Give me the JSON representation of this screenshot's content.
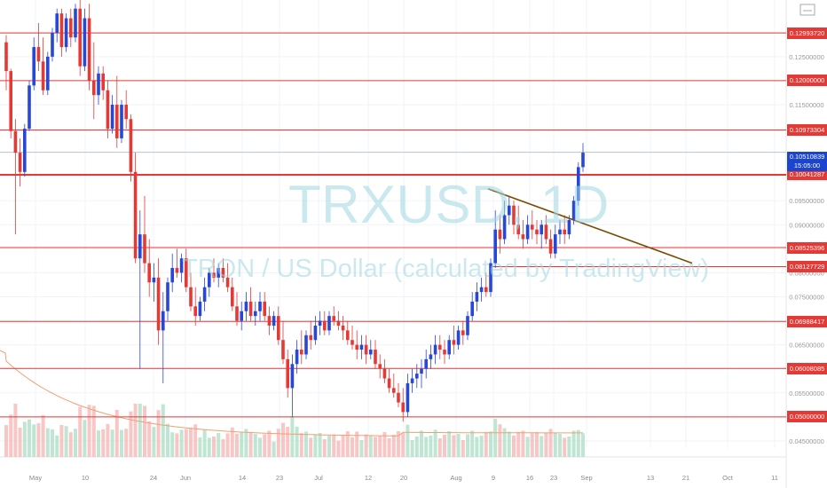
{
  "watermark": {
    "symbol": "TRXUSD, 1D",
    "description": "TRON / US Dollar (calculated by TradingView)"
  },
  "chart_data": {
    "type": "candlestick",
    "x_ticks": [
      "May",
      "10",
      "24",
      "Jun",
      "14",
      "23",
      "Jul",
      "12",
      "20",
      "Aug",
      "9",
      "16",
      "23",
      "Sep",
      "13",
      "21",
      "Oct",
      "11"
    ],
    "y_ticks": [
      0.13,
      0.125,
      0.115,
      0.095,
      0.09,
      0.08,
      0.075,
      0.065,
      0.055,
      0.045
    ],
    "y_tick_labels": [
      "0.13000000",
      "0.12500000",
      "0.11500000",
      "0.09500000",
      "0.09000000",
      "0.08000000",
      "0.07500000",
      "0.06500000",
      "0.05500000",
      "0.04500000"
    ],
    "ylim": [
      0.0435,
      0.1368
    ],
    "levels": [
      {
        "value": 0.1299372,
        "label": "0.12993720"
      },
      {
        "value": 0.12,
        "label": "0.12000000"
      },
      {
        "value": 0.10973304,
        "label": "0.10973304"
      },
      {
        "value": 0.10041287,
        "label": "0.10041287"
      },
      {
        "value": 0.08525396,
        "label": "0.08525396"
      },
      {
        "value": 0.08127729,
        "label": "0.08127729"
      },
      {
        "value": 0.06988417,
        "label": "0.06988417"
      },
      {
        "value": 0.06008085,
        "label": "0.06008085"
      },
      {
        "value": 0.05,
        "label": "0.05000000"
      }
    ],
    "current_price": {
      "value": 0.10510839,
      "label": "0.10510839",
      "countdown": "15:05:00"
    },
    "trendline": {
      "start": {
        "day": 120,
        "price": 0.0975
      },
      "end": {
        "day": 169,
        "price": 0.082
      },
      "color": "#7a4b00"
    },
    "colors": {
      "up": "#2747d6",
      "down": "#e53935",
      "level": "#e53935",
      "ma": "#f0a070"
    },
    "candles": [
      [
        0.128,
        0.1295,
        0.118,
        0.122
      ],
      [
        0.122,
        0.1225,
        0.108,
        0.1095
      ],
      [
        0.1095,
        0.112,
        0.088,
        0.105
      ],
      [
        0.105,
        0.108,
        0.098,
        0.101
      ],
      [
        0.101,
        0.111,
        0.1,
        0.11
      ],
      [
        0.11,
        0.12,
        0.1095,
        0.119
      ],
      [
        0.119,
        0.129,
        0.118,
        0.127
      ],
      [
        0.127,
        0.132,
        0.122,
        0.124
      ],
      [
        0.124,
        0.129,
        0.117,
        0.118
      ],
      [
        0.118,
        0.126,
        0.117,
        0.125
      ],
      [
        0.125,
        0.131,
        0.124,
        0.13
      ],
      [
        0.13,
        0.135,
        0.128,
        0.134
      ],
      [
        0.134,
        0.135,
        0.125,
        0.127
      ],
      [
        0.127,
        0.134,
        0.126,
        0.133
      ],
      [
        0.133,
        0.135,
        0.127,
        0.129
      ],
      [
        0.129,
        0.136,
        0.128,
        0.135
      ],
      [
        0.135,
        0.137,
        0.121,
        0.123
      ],
      [
        0.123,
        0.135,
        0.122,
        0.133
      ],
      [
        0.133,
        0.136,
        0.118,
        0.12
      ],
      [
        0.12,
        0.128,
        0.112,
        0.117
      ],
      [
        0.117,
        0.123,
        0.115,
        0.1215
      ],
      [
        0.1215,
        0.123,
        0.116,
        0.118
      ],
      [
        0.118,
        0.12,
        0.108,
        0.11
      ],
      [
        0.11,
        0.117,
        0.109,
        0.115
      ],
      [
        0.115,
        0.121,
        0.106,
        0.108
      ],
      [
        0.108,
        0.116,
        0.107,
        0.115
      ],
      [
        0.115,
        0.118,
        0.11,
        0.112
      ],
      [
        0.112,
        0.113,
        0.099,
        0.101
      ],
      [
        0.101,
        0.105,
        0.082,
        0.083
      ],
      [
        0.083,
        0.093,
        0.06,
        0.088
      ],
      [
        0.088,
        0.096,
        0.08,
        0.082
      ],
      [
        0.082,
        0.087,
        0.075,
        0.078
      ],
      [
        0.078,
        0.082,
        0.074,
        0.079
      ],
      [
        0.079,
        0.083,
        0.065,
        0.068
      ],
      [
        0.068,
        0.076,
        0.057,
        0.072
      ],
      [
        0.072,
        0.079,
        0.07,
        0.078
      ],
      [
        0.078,
        0.084,
        0.076,
        0.081
      ],
      [
        0.081,
        0.085,
        0.079,
        0.08
      ],
      [
        0.08,
        0.084,
        0.078,
        0.083
      ],
      [
        0.083,
        0.085,
        0.076,
        0.077
      ],
      [
        0.077,
        0.08,
        0.072,
        0.073
      ],
      [
        0.073,
        0.077,
        0.069,
        0.071
      ],
      [
        0.071,
        0.075,
        0.07,
        0.074
      ],
      [
        0.074,
        0.079,
        0.072,
        0.077
      ],
      [
        0.077,
        0.081,
        0.075,
        0.08
      ],
      [
        0.08,
        0.083,
        0.078,
        0.079
      ],
      [
        0.079,
        0.082,
        0.077,
        0.081
      ],
      [
        0.081,
        0.083,
        0.078,
        0.079
      ],
      [
        0.079,
        0.082,
        0.076,
        0.077
      ],
      [
        0.077,
        0.079,
        0.072,
        0.073
      ],
      [
        0.073,
        0.076,
        0.069,
        0.07
      ],
      [
        0.07,
        0.074,
        0.068,
        0.072
      ],
      [
        0.072,
        0.076,
        0.07,
        0.074
      ],
      [
        0.074,
        0.077,
        0.07,
        0.071
      ],
      [
        0.071,
        0.074,
        0.069,
        0.072
      ],
      [
        0.072,
        0.076,
        0.07,
        0.074
      ],
      [
        0.074,
        0.076,
        0.07,
        0.071
      ],
      [
        0.071,
        0.073,
        0.067,
        0.069
      ],
      [
        0.069,
        0.072,
        0.068,
        0.071
      ],
      [
        0.071,
        0.073,
        0.065,
        0.066
      ],
      [
        0.066,
        0.07,
        0.061,
        0.062
      ],
      [
        0.062,
        0.064,
        0.054,
        0.056
      ],
      [
        0.056,
        0.063,
        0.05,
        0.061
      ],
      [
        0.061,
        0.066,
        0.059,
        0.064
      ],
      [
        0.064,
        0.068,
        0.061,
        0.063
      ],
      [
        0.063,
        0.068,
        0.062,
        0.067
      ],
      [
        0.067,
        0.07,
        0.064,
        0.066
      ],
      [
        0.066,
        0.071,
        0.065,
        0.069
      ],
      [
        0.069,
        0.072,
        0.067,
        0.07
      ],
      [
        0.07,
        0.072,
        0.067,
        0.068
      ],
      [
        0.068,
        0.072,
        0.067,
        0.071
      ],
      [
        0.071,
        0.073,
        0.069,
        0.07
      ],
      [
        0.07,
        0.072,
        0.068,
        0.069
      ],
      [
        0.069,
        0.071,
        0.066,
        0.068
      ],
      [
        0.068,
        0.07,
        0.065,
        0.066
      ],
      [
        0.066,
        0.069,
        0.064,
        0.065
      ],
      [
        0.065,
        0.068,
        0.062,
        0.064
      ],
      [
        0.064,
        0.067,
        0.062,
        0.065
      ],
      [
        0.065,
        0.067,
        0.061,
        0.063
      ],
      [
        0.063,
        0.066,
        0.062,
        0.064
      ],
      [
        0.064,
        0.066,
        0.06,
        0.061
      ],
      [
        0.061,
        0.063,
        0.058,
        0.06
      ],
      [
        0.06,
        0.062,
        0.057,
        0.058
      ],
      [
        0.058,
        0.06,
        0.055,
        0.056
      ],
      [
        0.056,
        0.059,
        0.054,
        0.055
      ],
      [
        0.055,
        0.057,
        0.052,
        0.053
      ],
      [
        0.053,
        0.056,
        0.049,
        0.051
      ],
      [
        0.051,
        0.059,
        0.05,
        0.057
      ],
      [
        0.057,
        0.06,
        0.055,
        0.058
      ],
      [
        0.058,
        0.061,
        0.056,
        0.059
      ],
      [
        0.059,
        0.062,
        0.056,
        0.06
      ],
      [
        0.06,
        0.064,
        0.058,
        0.062
      ],
      [
        0.062,
        0.065,
        0.06,
        0.063
      ],
      [
        0.063,
        0.067,
        0.061,
        0.065
      ],
      [
        0.065,
        0.067,
        0.062,
        0.064
      ],
      [
        0.064,
        0.066,
        0.061,
        0.063
      ],
      [
        0.063,
        0.067,
        0.062,
        0.066
      ],
      [
        0.066,
        0.069,
        0.063,
        0.065
      ],
      [
        0.065,
        0.069,
        0.064,
        0.068
      ],
      [
        0.068,
        0.07,
        0.065,
        0.067
      ],
      [
        0.067,
        0.072,
        0.066,
        0.071
      ],
      [
        0.071,
        0.076,
        0.07,
        0.074
      ],
      [
        0.074,
        0.078,
        0.072,
        0.076
      ],
      [
        0.076,
        0.079,
        0.074,
        0.077
      ],
      [
        0.077,
        0.08,
        0.075,
        0.076
      ],
      [
        0.076,
        0.083,
        0.075,
        0.082
      ],
      [
        0.082,
        0.093,
        0.081,
        0.089
      ],
      [
        0.089,
        0.092,
        0.084,
        0.087
      ],
      [
        0.087,
        0.095,
        0.086,
        0.092
      ],
      [
        0.092,
        0.096,
        0.09,
        0.094
      ],
      [
        0.094,
        0.095,
        0.088,
        0.09
      ],
      [
        0.09,
        0.094,
        0.087,
        0.088
      ],
      [
        0.088,
        0.091,
        0.085,
        0.087
      ],
      [
        0.087,
        0.092,
        0.086,
        0.09
      ],
      [
        0.09,
        0.093,
        0.087,
        0.089
      ],
      [
        0.089,
        0.091,
        0.086,
        0.088
      ],
      [
        0.088,
        0.091,
        0.085,
        0.09
      ],
      [
        0.09,
        0.092,
        0.086,
        0.087
      ],
      [
        0.087,
        0.089,
        0.083,
        0.084
      ],
      [
        0.084,
        0.09,
        0.083,
        0.088
      ],
      [
        0.088,
        0.091,
        0.086,
        0.089
      ],
      [
        0.089,
        0.092,
        0.086,
        0.088
      ],
      [
        0.088,
        0.092,
        0.087,
        0.091
      ],
      [
        0.091,
        0.096,
        0.09,
        0.095
      ],
      [
        0.095,
        0.103,
        0.094,
        0.102
      ],
      [
        0.102,
        0.107,
        0.101,
        0.105
      ]
    ]
  },
  "axes": {
    "icon": "fullscreen-icon"
  }
}
